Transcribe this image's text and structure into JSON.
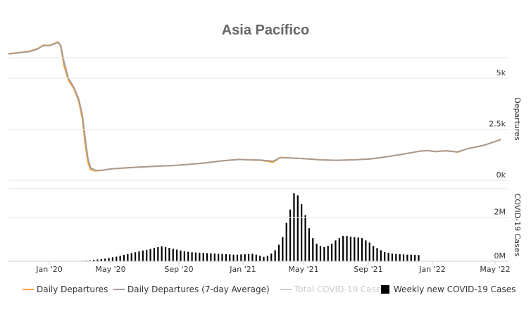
{
  "chart_data": {
    "type": "line",
    "title": "Asia Pacífico",
    "x_ticks": [
      "Jan '20",
      "May '20",
      "Sep '20",
      "Jan '21",
      "May '21",
      "Sep '21",
      "Jan '22",
      "May '22"
    ],
    "x_range": [
      "2019-11-01",
      "2022-05-01"
    ],
    "panels": [
      {
        "id": "departures",
        "ylabel": "Departures",
        "ylim": [
          0,
          6000
        ],
        "y_ticks": [
          {
            "value": 0,
            "label": "0k"
          },
          {
            "value": 2500,
            "label": "2.5k"
          },
          {
            "value": 5000,
            "label": "5k"
          }
        ]
      },
      {
        "id": "cases",
        "ylabel": "COVID-19 Cases",
        "ylim": [
          0,
          3300000
        ],
        "y_ticks": [
          {
            "value": 0,
            "label": "0M"
          },
          {
            "value": 2000000,
            "label": "2M"
          }
        ]
      }
    ],
    "series": [
      {
        "name": "Daily Departures",
        "panel": "departures",
        "color": "#f7a336",
        "points": [
          [
            "2019-11-01",
            6200
          ],
          [
            "2019-11-20",
            6250
          ],
          [
            "2019-12-10",
            6320
          ],
          [
            "2019-12-25",
            6450
          ],
          [
            "2020-01-05",
            6620
          ],
          [
            "2020-01-15",
            6600
          ],
          [
            "2020-01-25",
            6700
          ],
          [
            "2020-02-01",
            6780
          ],
          [
            "2020-02-06",
            6550
          ],
          [
            "2020-02-12",
            5600
          ],
          [
            "2020-02-20",
            4900
          ],
          [
            "2020-03-01",
            4500
          ],
          [
            "2020-03-10",
            3900
          ],
          [
            "2020-03-17",
            3000
          ],
          [
            "2020-03-22",
            1800
          ],
          [
            "2020-03-27",
            900
          ],
          [
            "2020-04-01",
            520
          ],
          [
            "2020-04-10",
            460
          ],
          [
            "2020-04-25",
            500
          ],
          [
            "2020-05-10",
            560
          ],
          [
            "2020-06-01",
            600
          ],
          [
            "2020-07-01",
            650
          ],
          [
            "2020-08-01",
            690
          ],
          [
            "2020-09-01",
            720
          ],
          [
            "2020-10-01",
            780
          ],
          [
            "2020-11-01",
            850
          ],
          [
            "2020-12-01",
            950
          ],
          [
            "2021-01-01",
            1020
          ],
          [
            "2021-01-20",
            1000
          ],
          [
            "2021-02-10",
            980
          ],
          [
            "2021-02-25",
            920
          ],
          [
            "2021-03-05",
            880
          ],
          [
            "2021-03-12",
            1000
          ],
          [
            "2021-03-18",
            1120
          ],
          [
            "2021-04-01",
            1100
          ],
          [
            "2021-05-01",
            1060
          ],
          [
            "2021-06-01",
            1000
          ],
          [
            "2021-07-01",
            980
          ],
          [
            "2021-08-01",
            1000
          ],
          [
            "2021-09-01",
            1040
          ],
          [
            "2021-10-01",
            1150
          ],
          [
            "2021-11-01",
            1280
          ],
          [
            "2021-12-01",
            1420
          ],
          [
            "2021-12-15",
            1460
          ],
          [
            "2022-01-01",
            1400
          ],
          [
            "2022-01-20",
            1450
          ],
          [
            "2022-02-10",
            1380
          ],
          [
            "2022-03-01",
            1550
          ],
          [
            "2022-04-01",
            1720
          ],
          [
            "2022-04-20",
            1900
          ],
          [
            "2022-05-01",
            2000
          ]
        ]
      },
      {
        "name": "Daily Departures (7-day Average)",
        "panel": "departures",
        "color": "#a99b94",
        "points": [
          [
            "2019-11-01",
            6180
          ],
          [
            "2019-11-20",
            6240
          ],
          [
            "2019-12-10",
            6300
          ],
          [
            "2019-12-25",
            6430
          ],
          [
            "2020-01-05",
            6600
          ],
          [
            "2020-01-15",
            6590
          ],
          [
            "2020-01-25",
            6680
          ],
          [
            "2020-02-01",
            6750
          ],
          [
            "2020-02-06",
            6600
          ],
          [
            "2020-02-12",
            5800
          ],
          [
            "2020-02-20",
            5000
          ],
          [
            "2020-03-01",
            4560
          ],
          [
            "2020-03-10",
            4000
          ],
          [
            "2020-03-17",
            3200
          ],
          [
            "2020-03-22",
            2100
          ],
          [
            "2020-03-27",
            1100
          ],
          [
            "2020-04-01",
            620
          ],
          [
            "2020-04-10",
            480
          ],
          [
            "2020-04-25",
            500
          ],
          [
            "2020-05-10",
            560
          ],
          [
            "2020-06-01",
            600
          ],
          [
            "2020-07-01",
            650
          ],
          [
            "2020-08-01",
            690
          ],
          [
            "2020-09-01",
            720
          ],
          [
            "2020-10-01",
            780
          ],
          [
            "2020-11-01",
            850
          ],
          [
            "2020-12-01",
            950
          ],
          [
            "2021-01-01",
            1020
          ],
          [
            "2021-01-20",
            1000
          ],
          [
            "2021-02-10",
            990
          ],
          [
            "2021-02-25",
            950
          ],
          [
            "2021-03-05",
            930
          ],
          [
            "2021-03-12",
            1020
          ],
          [
            "2021-03-18",
            1100
          ],
          [
            "2021-04-01",
            1100
          ],
          [
            "2021-05-01",
            1060
          ],
          [
            "2021-06-01",
            1000
          ],
          [
            "2021-07-01",
            980
          ],
          [
            "2021-08-01",
            1000
          ],
          [
            "2021-09-01",
            1040
          ],
          [
            "2021-10-01",
            1150
          ],
          [
            "2021-11-01",
            1280
          ],
          [
            "2021-12-01",
            1420
          ],
          [
            "2021-12-15",
            1450
          ],
          [
            "2022-01-01",
            1410
          ],
          [
            "2022-01-20",
            1440
          ],
          [
            "2022-02-10",
            1390
          ],
          [
            "2022-03-01",
            1550
          ],
          [
            "2022-04-01",
            1720
          ],
          [
            "2022-04-20",
            1890
          ],
          [
            "2022-05-01",
            1990
          ]
        ]
      },
      {
        "name": "Total COVID-19 Cases",
        "panel": "cases",
        "color": "#cccccc",
        "visible": false,
        "points": []
      },
      {
        "name": "Weekly new COVID-19 Cases",
        "panel": "cases",
        "color": "#000000",
        "type": "bar",
        "start": "2020-03-03",
        "interval_days": 7,
        "values": [
          10000,
          15000,
          20000,
          30000,
          40000,
          60000,
          80000,
          100000,
          120000,
          150000,
          180000,
          210000,
          250000,
          290000,
          330000,
          370000,
          410000,
          450000,
          490000,
          520000,
          560000,
          600000,
          640000,
          680000,
          650000,
          610000,
          570000,
          530000,
          490000,
          460000,
          430000,
          410000,
          400000,
          390000,
          380000,
          370000,
          360000,
          350000,
          340000,
          330000,
          320000,
          310000,
          300000,
          300000,
          310000,
          320000,
          330000,
          340000,
          300000,
          250000,
          200000,
          250000,
          350000,
          500000,
          750000,
          1100000,
          1750000,
          2350000,
          3100000,
          3000000,
          2600000,
          2100000,
          1500000,
          1050000,
          800000,
          700000,
          650000,
          700000,
          800000,
          950000,
          1050000,
          1150000,
          1150000,
          1120000,
          1100000,
          1080000,
          1050000,
          950000,
          850000,
          700000,
          600000,
          500000,
          420000,
          380000,
          350000,
          330000,
          320000,
          310000,
          300000,
          300000,
          290000,
          280000
        ]
      }
    ],
    "legend_position": "bottom",
    "grid": true
  }
}
